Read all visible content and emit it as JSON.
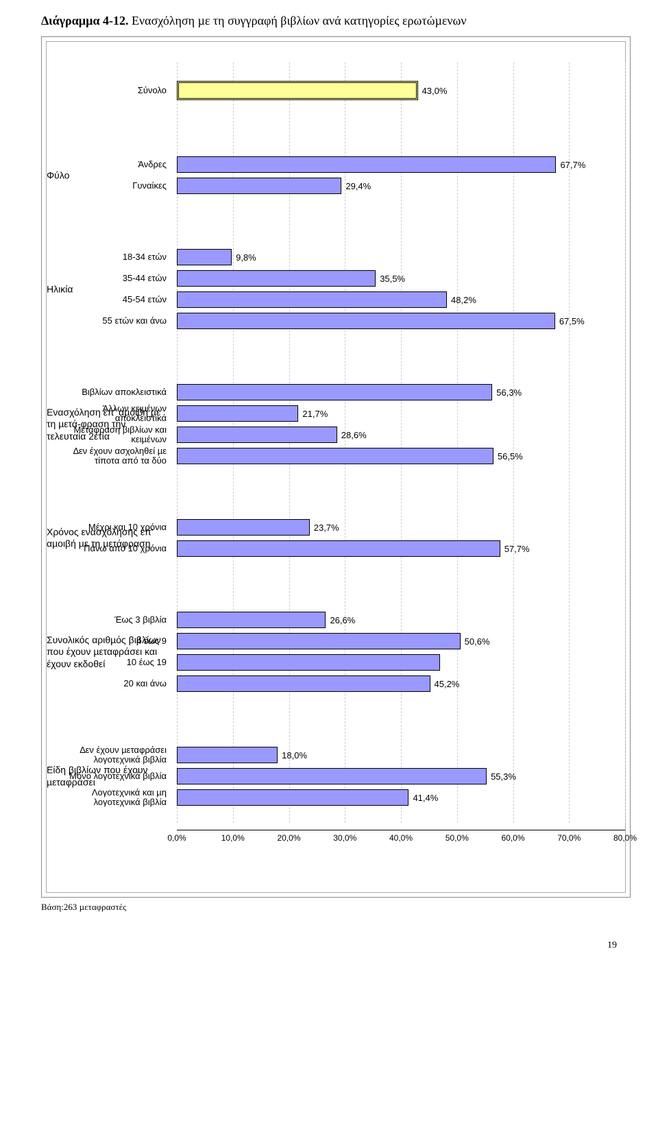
{
  "title_prefix": "∆ιάγραµµα 4-12.",
  "title_rest": " Ενασχόληση µε τη συγγραφή βιβλίων ανά κατηγορίες ερωτώµενων",
  "chart": {
    "bar_color": "#9999ff",
    "total_bar_color": "#ffff99",
    "border_color": "#000000",
    "background": "#ffffff",
    "grid_color": "#cccccc",
    "xmin": 0,
    "xmax": 80,
    "xstep": 10,
    "x_ticks": [
      "0,0%",
      "10,0%",
      "20,0%",
      "30,0%",
      "40,0%",
      "50,0%",
      "60,0%",
      "70,0%",
      "80,0%"
    ],
    "groups": [
      {
        "title": "",
        "rows": [
          {
            "label": "Σύνολο",
            "value": 43.0,
            "display": "43,0%",
            "total": true
          }
        ]
      },
      {
        "title": "Φύλο",
        "rows": [
          {
            "label": "Άνδρες",
            "value": 67.7,
            "display": "67,7%"
          },
          {
            "label": "Γυναίκες",
            "value": 29.4,
            "display": "29,4%"
          }
        ]
      },
      {
        "title": "Ηλικία",
        "rows": [
          {
            "label": "18-34 ετών",
            "value": 9.8,
            "display": "9,8%"
          },
          {
            "label": "35-44 ετών",
            "value": 35.5,
            "display": "35,5%"
          },
          {
            "label": "45-54 ετών",
            "value": 48.2,
            "display": "48,2%"
          },
          {
            "label": "55 ετών και άνω",
            "value": 67.5,
            "display": "67,5%"
          }
        ]
      },
      {
        "title": "Ενασχόληση επ' αµοιβή µε τη µετά-φραση την τελευταία 2ετία",
        "rows": [
          {
            "label": "Βιβλίων αποκλειστικά",
            "value": 56.3,
            "display": "56,3%"
          },
          {
            "label": "Άλλων κειµένων αποκλειστικά",
            "value": 21.7,
            "display": "21,7%"
          },
          {
            "label": "Μετάφραση βιβλίων και κειµένων",
            "value": 28.6,
            "display": "28,6%"
          },
          {
            "label": "∆εν έχουν ασχοληθεί µε τίποτα από τα δύο",
            "value": 56.5,
            "display": "56,5%"
          }
        ]
      },
      {
        "title": "Χρόνος ενασχόλησης επ' αµοιβή µε τη µετάφραση",
        "rows": [
          {
            "label": "Μέχρι και 10 χρόνια",
            "value": 23.7,
            "display": "23,7%"
          },
          {
            "label": "Πάνω από 10 χρόνια",
            "value": 57.7,
            "display": "57,7%"
          }
        ]
      },
      {
        "title": "Συνολικός αριθµός βιβλίων που έχουν µεταφράσει και έχουν εκδοθεί",
        "rows": [
          {
            "label": "Έως 3 βιβλία",
            "value": 26.6,
            "display": "26,6%"
          },
          {
            "label": "4 έως 9",
            "value": 50.6,
            "display": "50,6%"
          },
          {
            "label": "10 έως 19",
            "value": 47.0,
            "display": "",
            "blank_value": true
          },
          {
            "label": "20 και άνω",
            "value": 45.2,
            "display": "45,2%"
          }
        ]
      },
      {
        "title": "Είδη βιβλίων που έχουν µεταφράσει",
        "rows": [
          {
            "label": "∆εν έχουν µεταφράσει λογοτεχνικά βιβλία",
            "value": 18.0,
            "display": "18,0%"
          },
          {
            "label": "Μόνο λογοτεχνικά βιβλία",
            "value": 55.3,
            "display": "55,3%"
          },
          {
            "label": "Λογοτεχνικά και µη λογοτεχνικά βιβλία",
            "value": 41.4,
            "display": "41,4%"
          }
        ]
      }
    ]
  },
  "footer": "Βάση:263 µεταφραστές",
  "page_number": "19"
}
